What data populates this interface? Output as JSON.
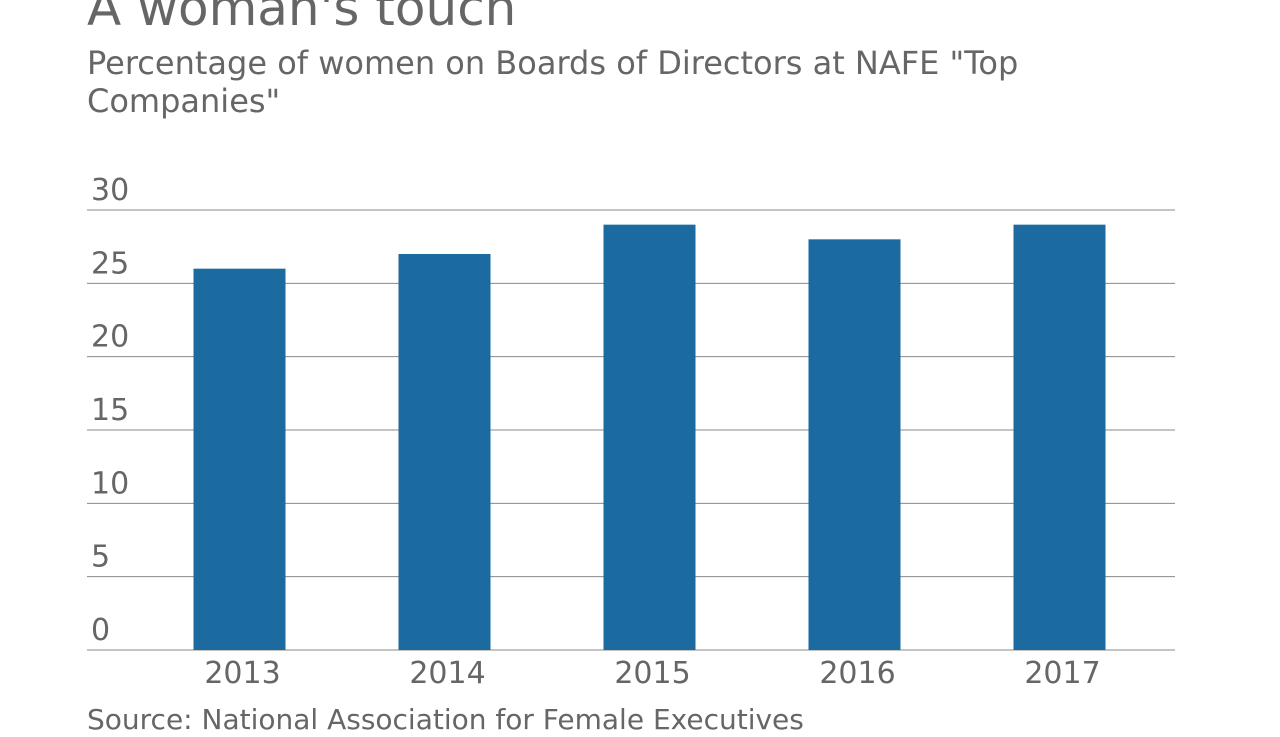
{
  "title": "A woman's touch",
  "subtitle": "Percentage of women on Boards of Directors at NAFE \"Top Companies\"",
  "source": "Source: National Association for Female Executives",
  "colors": {
    "bar": "#1b6aa0",
    "grid": "#8a8a8a",
    "text": "#666666"
  },
  "chart_data": {
    "type": "bar",
    "categories": [
      "2013",
      "2014",
      "2015",
      "2016",
      "2017"
    ],
    "values": [
      26,
      27,
      29,
      28,
      29
    ],
    "xlabel": "",
    "ylabel": "",
    "ylim": [
      0,
      30
    ],
    "yticks": [
      0,
      5,
      10,
      15,
      20,
      25,
      30
    ],
    "grid": true,
    "legend": "none"
  }
}
